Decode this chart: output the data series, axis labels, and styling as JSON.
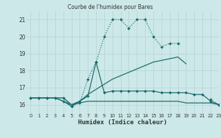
{
  "title": "Courbe de l'humidex pour Bares",
  "xlabel": "Humidex (Indice chaleur)",
  "background_color": "#cce8e8",
  "grid_color": "#b8d4d4",
  "line_color": "#1a6b6b",
  "xlim": [
    -0.5,
    23
  ],
  "ylim": [
    15.5,
    21.5
  ],
  "yticks": [
    16,
    17,
    18,
    19,
    20,
    21
  ],
  "xticks": [
    0,
    1,
    2,
    3,
    4,
    5,
    6,
    7,
    8,
    9,
    10,
    11,
    12,
    13,
    14,
    15,
    16,
    17,
    18,
    19,
    20,
    21,
    22,
    23
  ],
  "series": [
    {
      "x": [
        0,
        1,
        2,
        3,
        4,
        5,
        6,
        7,
        8,
        9,
        10,
        11,
        12,
        13,
        14,
        15,
        16,
        17,
        18,
        19,
        20,
        21,
        22,
        23
      ],
      "y": [
        16.4,
        16.4,
        16.4,
        16.4,
        16.4,
        15.9,
        16.1,
        17.5,
        18.5,
        20.0,
        21.0,
        21.0,
        20.5,
        21.0,
        21.0,
        20.0,
        19.4,
        19.6,
        19.6,
        null,
        null,
        null,
        16.3,
        16.0
      ],
      "marker": "D",
      "markersize": 2.0,
      "linewidth": 0.9,
      "linestyle": "dotted"
    },
    {
      "x": [
        0,
        1,
        2,
        3,
        4,
        5,
        6,
        7,
        8,
        9,
        10,
        11,
        12,
        13,
        14,
        15,
        16,
        17,
        18,
        19,
        20,
        21,
        22
      ],
      "y": [
        16.4,
        16.4,
        16.4,
        16.4,
        16.4,
        16.0,
        16.2,
        16.6,
        16.9,
        17.2,
        17.5,
        17.7,
        17.9,
        18.1,
        18.3,
        18.5,
        18.6,
        18.7,
        18.8,
        18.4,
        null,
        null,
        null
      ],
      "marker": null,
      "markersize": 0,
      "linewidth": 0.9,
      "linestyle": "solid"
    },
    {
      "x": [
        0,
        1,
        2,
        3,
        4,
        5,
        6,
        7,
        8,
        9,
        10,
        11,
        12,
        13,
        14,
        15,
        16,
        17,
        18,
        19,
        20,
        21,
        22,
        23
      ],
      "y": [
        16.4,
        16.4,
        16.4,
        16.4,
        16.2,
        16.0,
        16.1,
        16.2,
        16.2,
        16.2,
        16.2,
        16.2,
        16.2,
        16.2,
        16.2,
        16.2,
        16.2,
        16.2,
        16.2,
        16.1,
        16.1,
        16.1,
        16.1,
        16.0
      ],
      "marker": null,
      "markersize": 0,
      "linewidth": 0.9,
      "linestyle": "solid"
    },
    {
      "x": [
        0,
        1,
        2,
        3,
        4,
        5,
        6,
        7,
        8,
        9,
        10,
        11,
        12,
        13,
        14,
        15,
        16,
        17,
        18,
        19,
        20,
        21,
        22,
        23
      ],
      "y": [
        16.4,
        16.4,
        16.4,
        16.4,
        16.2,
        15.9,
        16.2,
        16.5,
        18.5,
        16.7,
        16.8,
        16.8,
        16.8,
        16.8,
        16.8,
        16.8,
        16.7,
        16.7,
        16.7,
        16.7,
        16.6,
        16.6,
        16.2,
        16.0
      ],
      "marker": "D",
      "markersize": 2.0,
      "linewidth": 0.9,
      "linestyle": "solid"
    }
  ]
}
